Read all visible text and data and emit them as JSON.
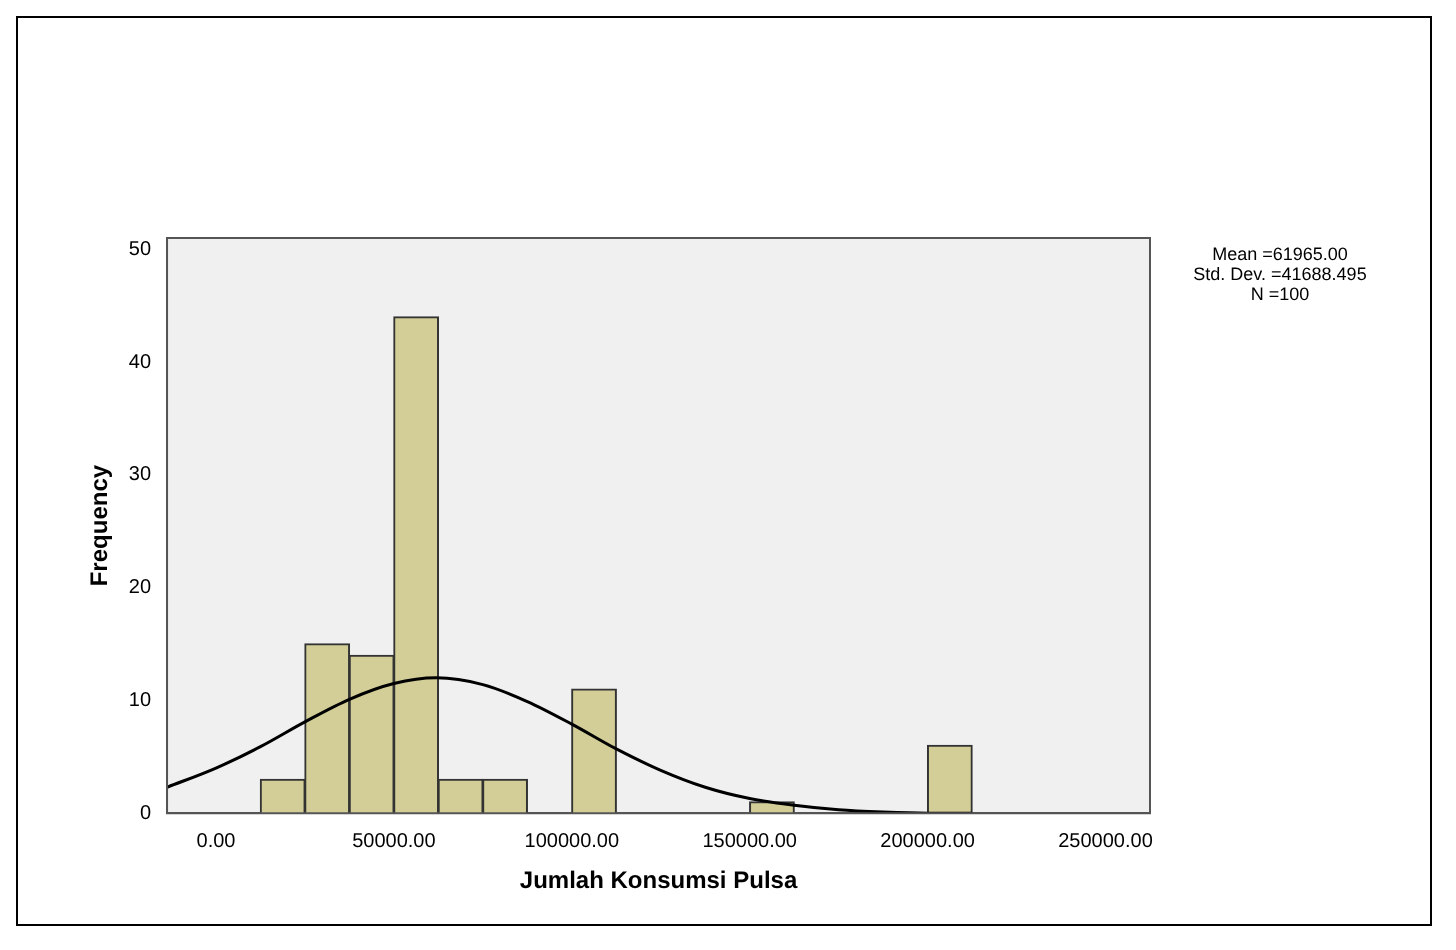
{
  "chart_data": {
    "type": "histogram",
    "xlabel": "Jumlah Konsumsi Pulsa",
    "ylabel": "Frequency",
    "color": "#d3ce97",
    "bins": [
      12500,
      25000,
      37500,
      50000,
      62500,
      75000,
      87500,
      100000,
      112500,
      125000,
      137500,
      150000,
      162500,
      175000,
      187500,
      200000,
      212500
    ],
    "values": [
      3,
      15,
      14,
      44,
      3,
      3,
      0,
      11,
      0,
      0,
      0,
      1,
      0,
      0,
      0,
      6
    ],
    "series": [
      {
        "type": "line",
        "color": "#000000",
        "marker": "none",
        "line_style": "solid",
        "x": [
          -13750,
          0,
          12500,
          25000,
          37500,
          50000,
          61965,
          75000,
          87500,
          100000,
          112500,
          125000,
          137500,
          150000,
          162500,
          175000,
          187500,
          200000,
          212500
        ],
        "values": [
          2.3,
          4,
          5.9,
          8.1,
          10.1,
          11.5,
          12,
          11.4,
          9.9,
          7.9,
          5.7,
          3.8,
          2.3,
          1.3,
          0.7,
          0.3,
          0.1,
          0,
          0
        ]
      }
    ],
    "xlim": [
      -13750,
      262500
    ],
    "xticks": [
      {
        "value": 0,
        "label": "0.00"
      },
      {
        "value": 50000,
        "label": "50000.00"
      },
      {
        "value": 100000,
        "label": "100000.00"
      },
      {
        "value": 150000,
        "label": "150000.00"
      },
      {
        "value": 200000,
        "label": "200000.00"
      },
      {
        "value": 250000,
        "label": "250000.00"
      }
    ],
    "ylim": [
      0,
      51
    ],
    "yticks": [
      0,
      10,
      20,
      30,
      40,
      50
    ],
    "grid": false,
    "annotations": [
      "Mean =61965.00\nStd. Dev. =41688.495\nN =100"
    ]
  }
}
